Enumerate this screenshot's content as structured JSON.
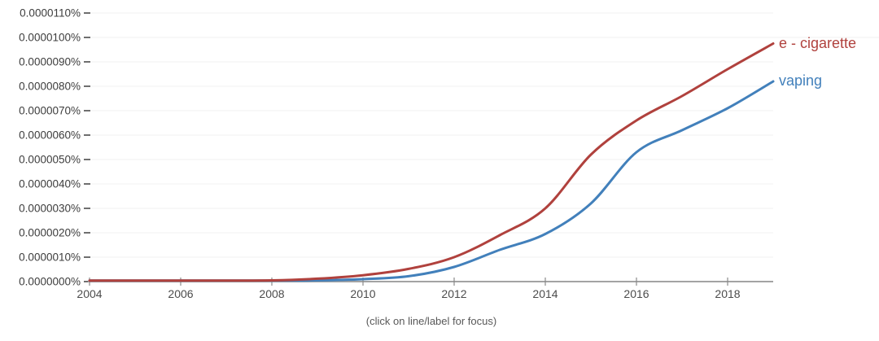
{
  "chart": {
    "caption": "(click on line/label for focus)",
    "colors": {
      "e_cigarette": "#b0413d",
      "vaping": "#4280bb",
      "grid": "#f2f2f2",
      "axis": "#a3a3a3",
      "tick": "#8a8a8a",
      "y_dash": "#6f6f6f",
      "y_label": "#3d3d3d",
      "x_label": "#4c4c4c"
    }
  },
  "chart_data": {
    "type": "line",
    "title": "",
    "xlabel": "",
    "ylabel": "",
    "values_scale": "1e-6 percent (0.0000010% = 1.0)",
    "x": [
      2004,
      2005,
      2006,
      2007,
      2008,
      2009,
      2010,
      2011,
      2012,
      2013,
      2014,
      2015,
      2016,
      2017,
      2018,
      2019
    ],
    "series": [
      {
        "name": "e - cigarette",
        "color": "#b0413d",
        "values": [
          0.0,
          0.01,
          0.01,
          0.02,
          0.05,
          0.12,
          0.26,
          0.52,
          1.0,
          1.9,
          3.0,
          5.2,
          6.6,
          7.6,
          8.7,
          9.75
        ]
      },
      {
        "name": "vaping",
        "color": "#4280bb",
        "values": [
          0.0,
          0.0,
          0.0,
          0.01,
          0.02,
          0.05,
          0.1,
          0.22,
          0.6,
          1.3,
          1.95,
          3.2,
          5.3,
          6.2,
          7.1,
          8.2
        ]
      }
    ],
    "y_ticks": [
      "0.0000000%",
      "0.0000010%",
      "0.0000020%",
      "0.0000030%",
      "0.0000040%",
      "0.0000050%",
      "0.0000060%",
      "0.0000070%",
      "0.0000080%",
      "0.0000090%",
      "0.0000100%",
      "0.0000110%"
    ],
    "x_ticks": [
      "2004",
      "2006",
      "2008",
      "2010",
      "2012",
      "2014",
      "2016",
      "2018"
    ],
    "ylim_percent": [
      0,
      1.1e-05
    ],
    "grid": true,
    "legend_position": "line-end-labels-right"
  }
}
